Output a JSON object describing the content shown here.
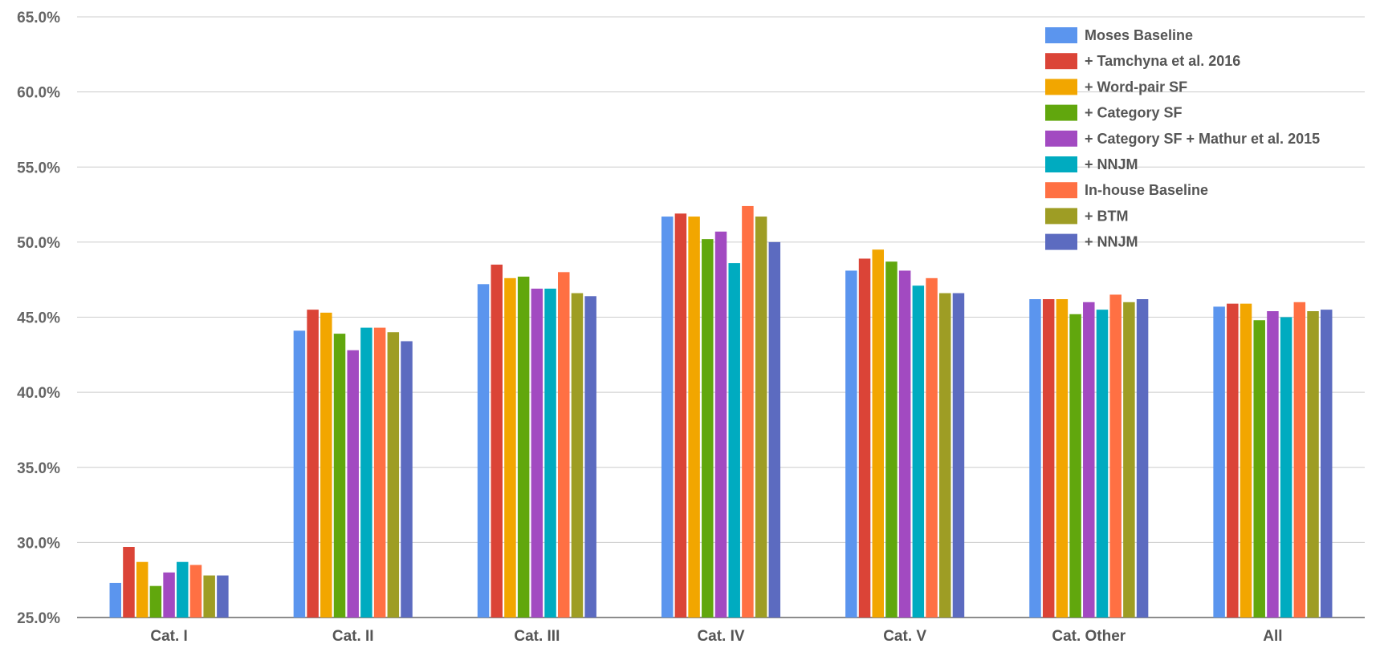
{
  "chart_data": {
    "type": "bar",
    "title": "",
    "xlabel": "",
    "ylabel": "",
    "ylim": [
      25.0,
      65.0
    ],
    "yticks": [
      25.0,
      30.0,
      35.0,
      40.0,
      45.0,
      50.0,
      55.0,
      60.0,
      65.0
    ],
    "ytick_labels": [
      "25.0%",
      "30.0%",
      "35.0%",
      "40.0%",
      "45.0%",
      "50.0%",
      "55.0%",
      "60.0%",
      "65.0%"
    ],
    "grid": true,
    "legend_position": "top-right",
    "categories": [
      "Cat. I",
      "Cat. II",
      "Cat. III",
      "Cat. IV",
      "Cat. V",
      "Cat. Other",
      "All"
    ],
    "series": [
      {
        "name": "Moses Baseline",
        "color": "#5b95ee",
        "values": [
          27.3,
          44.1,
          47.2,
          51.7,
          48.1,
          46.2,
          45.7
        ]
      },
      {
        "name": "+ Tamchyna et al. 2016",
        "color": "#db4437",
        "values": [
          29.7,
          45.5,
          48.5,
          51.9,
          48.9,
          46.2,
          45.9
        ]
      },
      {
        "name": "+ Word-pair SF",
        "color": "#f2a600",
        "values": [
          28.7,
          45.3,
          47.6,
          51.7,
          49.5,
          46.2,
          45.9
        ]
      },
      {
        "name": "+ Category SF",
        "color": "#61a70d",
        "values": [
          27.1,
          43.9,
          47.7,
          50.2,
          48.7,
          45.2,
          44.8
        ]
      },
      {
        "name": "+ Category SF + Mathur et al. 2015",
        "color": "#a24ac1",
        "values": [
          28.0,
          42.8,
          46.9,
          50.7,
          48.1,
          46.0,
          45.4
        ]
      },
      {
        "name": "+ NNJM",
        "color": "#00abc0",
        "values": [
          28.7,
          44.3,
          46.9,
          48.6,
          47.1,
          45.5,
          45.0
        ]
      },
      {
        "name": "In-house Baseline",
        "color": "#ff7043",
        "values": [
          28.5,
          44.3,
          48.0,
          52.4,
          47.6,
          46.5,
          46.0
        ]
      },
      {
        "name": "+ BTM",
        "color": "#9e9d24",
        "values": [
          27.8,
          44.0,
          46.6,
          51.7,
          46.6,
          46.0,
          45.4
        ]
      },
      {
        "name": "+ NNJM",
        "color": "#5c6bc0",
        "values": [
          27.8,
          43.4,
          46.4,
          50.0,
          46.6,
          46.2,
          45.5
        ]
      }
    ]
  }
}
